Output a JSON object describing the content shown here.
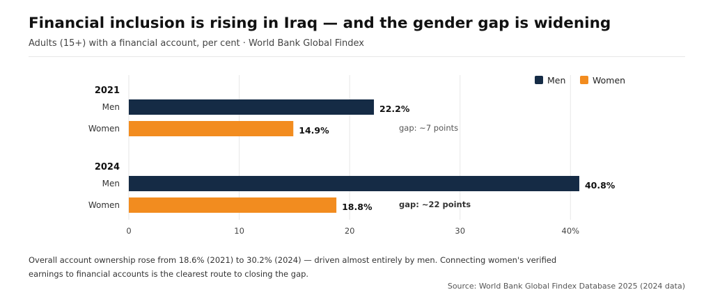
{
  "header": {
    "title": "Financial inclusion is rising in Iraq — and the gender gap is widening",
    "subtitle": "Adults (15+) with a financial account, per cent · World Bank Global Findex"
  },
  "chart_data": {
    "type": "bar",
    "orientation": "horizontal",
    "xlim": [
      0,
      42
    ],
    "xticks": [
      "0",
      "10",
      "20",
      "30",
      "40%"
    ],
    "xtick_values": [
      0,
      10,
      20,
      30,
      40
    ],
    "grid": true,
    "legend_position": "top-right",
    "series": [
      {
        "name": "Men",
        "color": "#152b45"
      },
      {
        "name": "Women",
        "color": "#f28c1f"
      }
    ],
    "groups": [
      {
        "label": "2021",
        "bars": [
          {
            "category": "Men",
            "value": 22.2,
            "label": "22.2%"
          },
          {
            "category": "Women",
            "value": 14.9,
            "label": "14.9%"
          }
        ],
        "annotation": "gap: ~7 points",
        "annotation_bold": false
      },
      {
        "label": "2024",
        "bars": [
          {
            "category": "Men",
            "value": 40.8,
            "label": "40.8%"
          },
          {
            "category": "Women",
            "value": 18.8,
            "label": "18.8%"
          }
        ],
        "annotation": "gap: ~22 points",
        "annotation_bold": true
      }
    ]
  },
  "footer": {
    "note": "Overall account ownership rose from 18.6% (2021) to 30.2% (2024) — driven almost entirely by men. Connecting women's verified earnings to financial accounts is the clearest route to closing the gap.",
    "source": "Source: World Bank Global Findex Database 2025 (2024 data)"
  }
}
